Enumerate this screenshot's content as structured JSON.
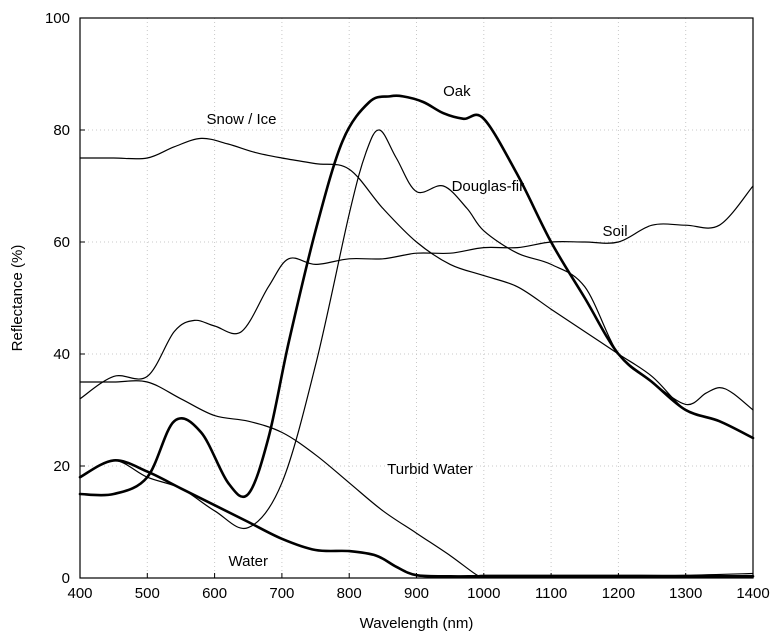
{
  "chart_data": {
    "type": "line",
    "xlabel": "Wavelength (nm)",
    "ylabel": "Reflectance (%)",
    "xlim": [
      400,
      1400
    ],
    "ylim": [
      0,
      100
    ],
    "xticks": [
      400,
      500,
      600,
      700,
      800,
      900,
      1000,
      1100,
      1200,
      1300,
      1400
    ],
    "yticks": [
      0,
      20,
      40,
      60,
      80,
      100
    ],
    "grid": true,
    "series": [
      {
        "name": "Snow / Ice",
        "stroke": "thin",
        "label_at": [
          640,
          82
        ],
        "x": [
          400,
          450,
          500,
          540,
          580,
          620,
          660,
          700,
          750,
          800,
          850,
          900,
          950,
          1000,
          1050,
          1100,
          1150,
          1200,
          1250,
          1300,
          1350,
          1400
        ],
        "y": [
          75,
          75,
          75,
          77,
          78.5,
          77.5,
          76,
          75,
          74,
          73,
          66,
          60,
          56,
          54,
          52,
          48,
          44,
          40,
          36,
          30,
          28,
          25
        ]
      },
      {
        "name": "Oak",
        "stroke": "thick",
        "label_at": [
          960,
          87
        ],
        "x": [
          400,
          450,
          500,
          540,
          580,
          620,
          650,
          680,
          710,
          750,
          790,
          830,
          860,
          880,
          910,
          940,
          970,
          1000,
          1050,
          1100,
          1150,
          1200,
          1250,
          1300,
          1350,
          1400
        ],
        "y": [
          15,
          15,
          18,
          28,
          26,
          17,
          15,
          25,
          42,
          62,
          78,
          85,
          86,
          86,
          85,
          83,
          82,
          82,
          72,
          60,
          50,
          40,
          35,
          30,
          28,
          25
        ]
      },
      {
        "name": "Douglas-fir",
        "stroke": "thin",
        "label_at": [
          1006,
          70
        ],
        "x": [
          400,
          450,
          500,
          550,
          600,
          650,
          700,
          750,
          800,
          825,
          845,
          870,
          900,
          940,
          975,
          1000,
          1050,
          1100,
          1150,
          1200,
          1250,
          1300,
          1330,
          1350,
          1370,
          1400
        ],
        "y": [
          18,
          21,
          18,
          16,
          12,
          9,
          17,
          38,
          65,
          76,
          80,
          75,
          69,
          70,
          66,
          62,
          58,
          56,
          52,
          40,
          35,
          31,
          33,
          34,
          33,
          30
        ]
      },
      {
        "name": "Soil",
        "stroke": "thin",
        "label_at": [
          1195,
          62
        ],
        "x": [
          400,
          450,
          500,
          540,
          570,
          600,
          640,
          680,
          710,
          750,
          800,
          850,
          900,
          950,
          1000,
          1050,
          1100,
          1150,
          1200,
          1250,
          1300,
          1350,
          1400
        ],
        "y": [
          32,
          36,
          36,
          44,
          46,
          45,
          44,
          52,
          57,
          56,
          57,
          57,
          58,
          58,
          59,
          59,
          60,
          60,
          60,
          63,
          63,
          63,
          70
        ]
      },
      {
        "name": "Turbid Water",
        "stroke": "thin",
        "label_at": [
          920,
          19.5
        ],
        "x": [
          400,
          450,
          500,
          550,
          600,
          650,
          700,
          750,
          800,
          850,
          900,
          950,
          990,
          1000,
          1100,
          1200,
          1300,
          1400
        ],
        "y": [
          35,
          35,
          35,
          32,
          29,
          28,
          26,
          22,
          17,
          12,
          8,
          4,
          0.5,
          0.5,
          0.5,
          0.5,
          0.5,
          0.8
        ]
      },
      {
        "name": "Water",
        "stroke": "thick",
        "label_at": [
          650,
          3
        ],
        "x": [
          400,
          450,
          500,
          550,
          600,
          650,
          700,
          750,
          800,
          840,
          870,
          900,
          950,
          1000,
          1100,
          1200,
          1300,
          1400
        ],
        "y": [
          18,
          21,
          19,
          16,
          13,
          10,
          7,
          5,
          4.8,
          4,
          2,
          0.5,
          0.3,
          0.3,
          0.3,
          0.3,
          0.3,
          0.3
        ]
      }
    ]
  }
}
